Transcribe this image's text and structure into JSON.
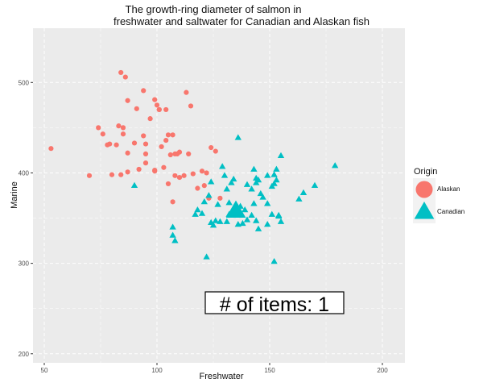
{
  "chart_data": {
    "type": "scatter",
    "title_line1": "The growth-ring diameter of salmon in",
    "title_line2": "freshwater and saltwater for Canadian and Alaskan fish",
    "xlabel": "Freshwater",
    "ylabel": "Marine",
    "xlim": [
      45,
      210
    ],
    "ylim": [
      190,
      560
    ],
    "x_ticks": [
      50,
      100,
      150,
      200
    ],
    "y_ticks": [
      200,
      300,
      400,
      500
    ],
    "grid": true,
    "legend": {
      "title": "Origin",
      "placement": "right"
    },
    "annotation": "# of items:  1",
    "colors": {
      "Alaskan": "#F8766D",
      "Canadian": "#00BFC4",
      "panel": "#EBEBEB",
      "grid": "#FFFFFF"
    },
    "highlight": {
      "series": "Canadian",
      "x": 135,
      "y": 358
    },
    "series": [
      {
        "name": "Alaskan",
        "marker": "circle",
        "points": [
          [
            53,
            427
          ],
          [
            70,
            397
          ],
          [
            74,
            450
          ],
          [
            76,
            443
          ],
          [
            78,
            431
          ],
          [
            79,
            432
          ],
          [
            80,
            398
          ],
          [
            82,
            431
          ],
          [
            83,
            452
          ],
          [
            84,
            511
          ],
          [
            84,
            398
          ],
          [
            85,
            450
          ],
          [
            85,
            443
          ],
          [
            86,
            506
          ],
          [
            87,
            480
          ],
          [
            87,
            422
          ],
          [
            87,
            401
          ],
          [
            90,
            433
          ],
          [
            91,
            471
          ],
          [
            92,
            404
          ],
          [
            94,
            491
          ],
          [
            94,
            441
          ],
          [
            95,
            432
          ],
          [
            95,
            421
          ],
          [
            95,
            411
          ],
          [
            97,
            460
          ],
          [
            99,
            481
          ],
          [
            99,
            403
          ],
          [
            99,
            402
          ],
          [
            100,
            475
          ],
          [
            101,
            470
          ],
          [
            101,
            470
          ],
          [
            102,
            429
          ],
          [
            103,
            406
          ],
          [
            104,
            436
          ],
          [
            104,
            470
          ],
          [
            105,
            388
          ],
          [
            105,
            442
          ],
          [
            106,
            420
          ],
          [
            107,
            442
          ],
          [
            107,
            368
          ],
          [
            108,
            397
          ],
          [
            108,
            421
          ],
          [
            109,
            421
          ],
          [
            110,
            423
          ],
          [
            110,
            395
          ],
          [
            112,
            397
          ],
          [
            113,
            489
          ],
          [
            114,
            421
          ],
          [
            115,
            474
          ],
          [
            116,
            399
          ],
          [
            118,
            383
          ],
          [
            120,
            402
          ],
          [
            121,
            386
          ],
          [
            122,
            400
          ],
          [
            123,
            372
          ],
          [
            124,
            428
          ],
          [
            126,
            424
          ],
          [
            128,
            372
          ]
        ]
      },
      {
        "name": "Canadian",
        "marker": "triangle",
        "points": [
          [
            90,
            386
          ],
          [
            107,
            340
          ],
          [
            107,
            331
          ],
          [
            108,
            325
          ],
          [
            117,
            354
          ],
          [
            118,
            359
          ],
          [
            120,
            355
          ],
          [
            121,
            368
          ],
          [
            122,
            307
          ],
          [
            123,
            375
          ],
          [
            124,
            390
          ],
          [
            124,
            345
          ],
          [
            125,
            342
          ],
          [
            126,
            347
          ],
          [
            127,
            365
          ],
          [
            128,
            346
          ],
          [
            129,
            407
          ],
          [
            130,
            397
          ],
          [
            131,
            346
          ],
          [
            131,
            382
          ],
          [
            132,
            354
          ],
          [
            132,
            367
          ],
          [
            133,
            389
          ],
          [
            134,
            393
          ],
          [
            134,
            354
          ],
          [
            135,
            358
          ],
          [
            136,
            439
          ],
          [
            136,
            343
          ],
          [
            137,
            363
          ],
          [
            138,
            344
          ],
          [
            139,
            359
          ],
          [
            140,
            348
          ],
          [
            140,
            387
          ],
          [
            142,
            382
          ],
          [
            142,
            353
          ],
          [
            143,
            404
          ],
          [
            143,
            366
          ],
          [
            144,
            394
          ],
          [
            144,
            389
          ],
          [
            144,
            347
          ],
          [
            145,
            338
          ],
          [
            145,
            392
          ],
          [
            146,
            377
          ],
          [
            147,
            373
          ],
          [
            149,
            397
          ],
          [
            149,
            366
          ],
          [
            149,
            343
          ],
          [
            151,
            354
          ],
          [
            151,
            385
          ],
          [
            152,
            302
          ],
          [
            152,
            388
          ],
          [
            152,
            398
          ],
          [
            153,
            404
          ],
          [
            153,
            392
          ],
          [
            154,
            352
          ],
          [
            154,
            353
          ],
          [
            155,
            346
          ],
          [
            155,
            419
          ],
          [
            163,
            371
          ],
          [
            165,
            378
          ],
          [
            170,
            386
          ],
          [
            179,
            408
          ]
        ]
      }
    ]
  }
}
